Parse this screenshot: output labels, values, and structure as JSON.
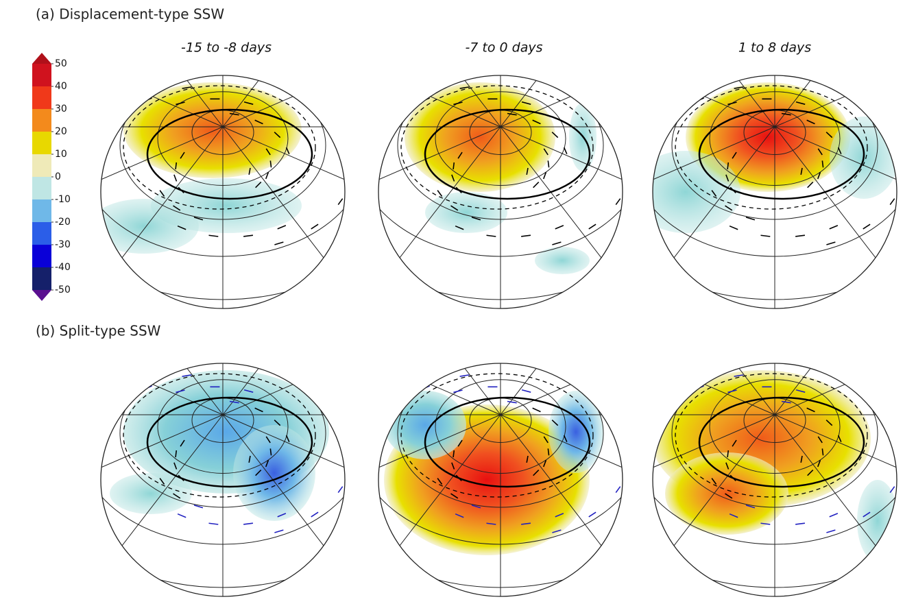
{
  "panels": [
    {
      "title": "(a) Displacement-type SSW"
    },
    {
      "title": "(b) Split-type SSW"
    }
  ],
  "columns": [
    "-15 to -8 days",
    "-7 to 0 days",
    "1 to 8 days"
  ],
  "colorbar": {
    "ticks": [
      50,
      40,
      30,
      20,
      10,
      0,
      -10,
      -20,
      -30,
      -40,
      -50
    ],
    "colors": [
      "#d0121e",
      "#f0391a",
      "#f38a1c",
      "#e8d800",
      "#efeab8",
      "#bfe6e4",
      "#6fb8e8",
      "#2b5ee8",
      "#0a00d8",
      "#15206a"
    ],
    "top_color": "#b0101a",
    "bottom_color": "#5a1090"
  }
}
